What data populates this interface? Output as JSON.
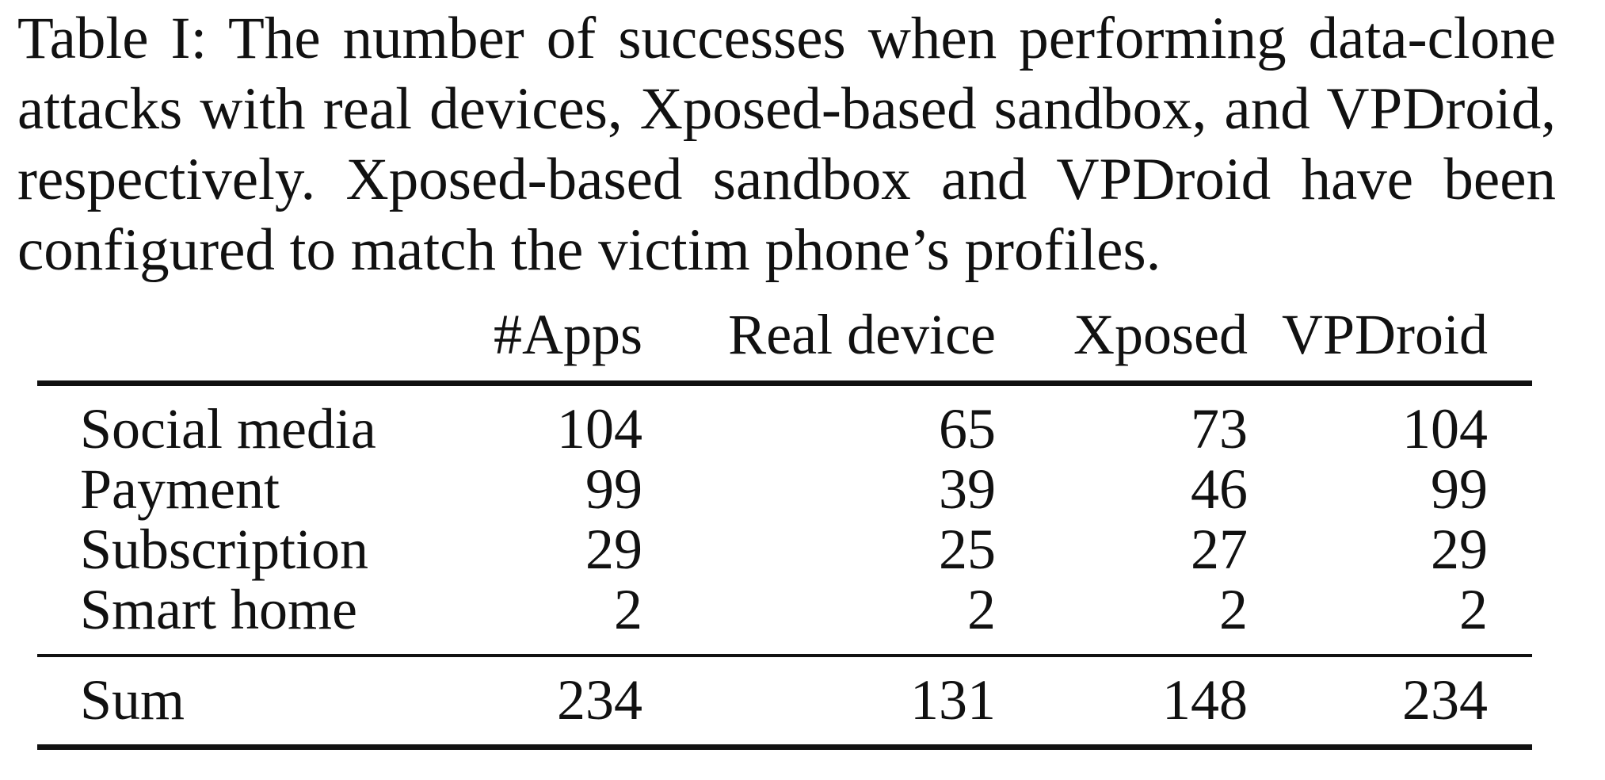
{
  "caption": "Table I: The number of successes when performing data-clone attacks with real devices, Xposed-based sandbox, and VPDroid, respectively. Xposed-based sandbox and VPDroid have been configured to match the victim phone’s profiles.",
  "table": {
    "headers": [
      "",
      "#Apps",
      "Real device",
      "Xposed",
      "VPDroid"
    ],
    "rows": [
      {
        "category": "Social media",
        "apps": "104",
        "real_device": "65",
        "xposed": "73",
        "vpdroid": "104"
      },
      {
        "category": "Payment",
        "apps": "99",
        "real_device": "39",
        "xposed": "46",
        "vpdroid": "99"
      },
      {
        "category": "Subscription",
        "apps": "29",
        "real_device": "25",
        "xposed": "27",
        "vpdroid": "29"
      },
      {
        "category": "Smart home",
        "apps": "2",
        "real_device": "2",
        "xposed": "2",
        "vpdroid": "2"
      }
    ],
    "sum": {
      "category": "Sum",
      "apps": "234",
      "real_device": "131",
      "xposed": "148",
      "vpdroid": "234"
    }
  }
}
